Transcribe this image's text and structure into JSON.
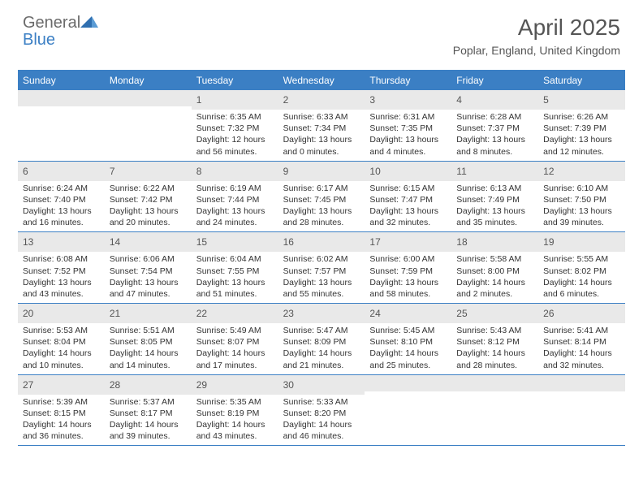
{
  "brand": {
    "word1": "General",
    "word2": "Blue",
    "color_general": "#6b6b6b",
    "color_blue": "#3b7fc4"
  },
  "header": {
    "title": "April 2025",
    "location": "Poplar, England, United Kingdom"
  },
  "colors": {
    "header_bar": "#3b7fc4",
    "daynum_bg": "#e9e9e9",
    "text": "#333333",
    "rule": "#3b7fc4"
  },
  "dow": [
    "Sunday",
    "Monday",
    "Tuesday",
    "Wednesday",
    "Thursday",
    "Friday",
    "Saturday"
  ],
  "weeks": [
    [
      {
        "empty": true
      },
      {
        "empty": true
      },
      {
        "day": "1",
        "sunrise": "Sunrise: 6:35 AM",
        "sunset": "Sunset: 7:32 PM",
        "dl1": "Daylight: 12 hours",
        "dl2": "and 56 minutes."
      },
      {
        "day": "2",
        "sunrise": "Sunrise: 6:33 AM",
        "sunset": "Sunset: 7:34 PM",
        "dl1": "Daylight: 13 hours",
        "dl2": "and 0 minutes."
      },
      {
        "day": "3",
        "sunrise": "Sunrise: 6:31 AM",
        "sunset": "Sunset: 7:35 PM",
        "dl1": "Daylight: 13 hours",
        "dl2": "and 4 minutes."
      },
      {
        "day": "4",
        "sunrise": "Sunrise: 6:28 AM",
        "sunset": "Sunset: 7:37 PM",
        "dl1": "Daylight: 13 hours",
        "dl2": "and 8 minutes."
      },
      {
        "day": "5",
        "sunrise": "Sunrise: 6:26 AM",
        "sunset": "Sunset: 7:39 PM",
        "dl1": "Daylight: 13 hours",
        "dl2": "and 12 minutes."
      }
    ],
    [
      {
        "day": "6",
        "sunrise": "Sunrise: 6:24 AM",
        "sunset": "Sunset: 7:40 PM",
        "dl1": "Daylight: 13 hours",
        "dl2": "and 16 minutes."
      },
      {
        "day": "7",
        "sunrise": "Sunrise: 6:22 AM",
        "sunset": "Sunset: 7:42 PM",
        "dl1": "Daylight: 13 hours",
        "dl2": "and 20 minutes."
      },
      {
        "day": "8",
        "sunrise": "Sunrise: 6:19 AM",
        "sunset": "Sunset: 7:44 PM",
        "dl1": "Daylight: 13 hours",
        "dl2": "and 24 minutes."
      },
      {
        "day": "9",
        "sunrise": "Sunrise: 6:17 AM",
        "sunset": "Sunset: 7:45 PM",
        "dl1": "Daylight: 13 hours",
        "dl2": "and 28 minutes."
      },
      {
        "day": "10",
        "sunrise": "Sunrise: 6:15 AM",
        "sunset": "Sunset: 7:47 PM",
        "dl1": "Daylight: 13 hours",
        "dl2": "and 32 minutes."
      },
      {
        "day": "11",
        "sunrise": "Sunrise: 6:13 AM",
        "sunset": "Sunset: 7:49 PM",
        "dl1": "Daylight: 13 hours",
        "dl2": "and 35 minutes."
      },
      {
        "day": "12",
        "sunrise": "Sunrise: 6:10 AM",
        "sunset": "Sunset: 7:50 PM",
        "dl1": "Daylight: 13 hours",
        "dl2": "and 39 minutes."
      }
    ],
    [
      {
        "day": "13",
        "sunrise": "Sunrise: 6:08 AM",
        "sunset": "Sunset: 7:52 PM",
        "dl1": "Daylight: 13 hours",
        "dl2": "and 43 minutes."
      },
      {
        "day": "14",
        "sunrise": "Sunrise: 6:06 AM",
        "sunset": "Sunset: 7:54 PM",
        "dl1": "Daylight: 13 hours",
        "dl2": "and 47 minutes."
      },
      {
        "day": "15",
        "sunrise": "Sunrise: 6:04 AM",
        "sunset": "Sunset: 7:55 PM",
        "dl1": "Daylight: 13 hours",
        "dl2": "and 51 minutes."
      },
      {
        "day": "16",
        "sunrise": "Sunrise: 6:02 AM",
        "sunset": "Sunset: 7:57 PM",
        "dl1": "Daylight: 13 hours",
        "dl2": "and 55 minutes."
      },
      {
        "day": "17",
        "sunrise": "Sunrise: 6:00 AM",
        "sunset": "Sunset: 7:59 PM",
        "dl1": "Daylight: 13 hours",
        "dl2": "and 58 minutes."
      },
      {
        "day": "18",
        "sunrise": "Sunrise: 5:58 AM",
        "sunset": "Sunset: 8:00 PM",
        "dl1": "Daylight: 14 hours",
        "dl2": "and 2 minutes."
      },
      {
        "day": "19",
        "sunrise": "Sunrise: 5:55 AM",
        "sunset": "Sunset: 8:02 PM",
        "dl1": "Daylight: 14 hours",
        "dl2": "and 6 minutes."
      }
    ],
    [
      {
        "day": "20",
        "sunrise": "Sunrise: 5:53 AM",
        "sunset": "Sunset: 8:04 PM",
        "dl1": "Daylight: 14 hours",
        "dl2": "and 10 minutes."
      },
      {
        "day": "21",
        "sunrise": "Sunrise: 5:51 AM",
        "sunset": "Sunset: 8:05 PM",
        "dl1": "Daylight: 14 hours",
        "dl2": "and 14 minutes."
      },
      {
        "day": "22",
        "sunrise": "Sunrise: 5:49 AM",
        "sunset": "Sunset: 8:07 PM",
        "dl1": "Daylight: 14 hours",
        "dl2": "and 17 minutes."
      },
      {
        "day": "23",
        "sunrise": "Sunrise: 5:47 AM",
        "sunset": "Sunset: 8:09 PM",
        "dl1": "Daylight: 14 hours",
        "dl2": "and 21 minutes."
      },
      {
        "day": "24",
        "sunrise": "Sunrise: 5:45 AM",
        "sunset": "Sunset: 8:10 PM",
        "dl1": "Daylight: 14 hours",
        "dl2": "and 25 minutes."
      },
      {
        "day": "25",
        "sunrise": "Sunrise: 5:43 AM",
        "sunset": "Sunset: 8:12 PM",
        "dl1": "Daylight: 14 hours",
        "dl2": "and 28 minutes."
      },
      {
        "day": "26",
        "sunrise": "Sunrise: 5:41 AM",
        "sunset": "Sunset: 8:14 PM",
        "dl1": "Daylight: 14 hours",
        "dl2": "and 32 minutes."
      }
    ],
    [
      {
        "day": "27",
        "sunrise": "Sunrise: 5:39 AM",
        "sunset": "Sunset: 8:15 PM",
        "dl1": "Daylight: 14 hours",
        "dl2": "and 36 minutes."
      },
      {
        "day": "28",
        "sunrise": "Sunrise: 5:37 AM",
        "sunset": "Sunset: 8:17 PM",
        "dl1": "Daylight: 14 hours",
        "dl2": "and 39 minutes."
      },
      {
        "day": "29",
        "sunrise": "Sunrise: 5:35 AM",
        "sunset": "Sunset: 8:19 PM",
        "dl1": "Daylight: 14 hours",
        "dl2": "and 43 minutes."
      },
      {
        "day": "30",
        "sunrise": "Sunrise: 5:33 AM",
        "sunset": "Sunset: 8:20 PM",
        "dl1": "Daylight: 14 hours",
        "dl2": "and 46 minutes."
      },
      {
        "empty": true
      },
      {
        "empty": true
      },
      {
        "empty": true
      }
    ]
  ]
}
